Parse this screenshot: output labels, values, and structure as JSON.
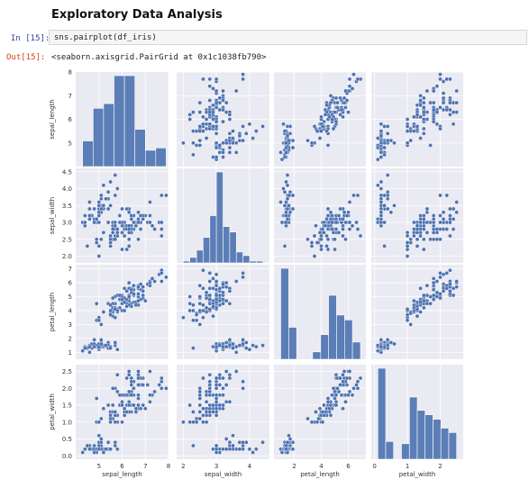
{
  "heading": "Exploratory Data Analysis",
  "cell": {
    "in_prompt": "In [15]:",
    "code": "sns.pairplot(df_iris)",
    "out_prompt": "Out[15]:",
    "output": "<seaborn.axisgrid.PairGrid at 0x1c1038fb790>"
  },
  "colors": {
    "panel_bg": "#eaeaf2",
    "marker": "#4c72b0",
    "grid": "#ffffff"
  },
  "chart_data": {
    "type": "scatter",
    "variables": [
      "sepal_length",
      "sepal_width",
      "petal_length",
      "petal_width"
    ],
    "axes": {
      "sepal_length": {
        "range": [
          4.0,
          8.0
        ],
        "ticks": [
          5,
          6,
          7,
          8
        ]
      },
      "sepal_width": {
        "range": [
          1.8,
          4.6
        ],
        "ticks": [
          2,
          3,
          4
        ]
      },
      "petal_length": {
        "range": [
          0.5,
          7.3
        ],
        "ticks": [
          2,
          4,
          6
        ]
      },
      "petal_width": {
        "range": [
          -0.1,
          2.7
        ],
        "ticks": [
          0,
          1,
          2
        ]
      }
    },
    "ytick_labels": {
      "sepal_length": [
        "5",
        "6",
        "7",
        "8"
      ],
      "sepal_width": [
        "2.0",
        "2.5",
        "3.0",
        "3.5",
        "4.0",
        "4.5"
      ],
      "petal_length": [
        "1",
        "2",
        "3",
        "4",
        "5",
        "6",
        "7"
      ],
      "petal_width": [
        "0.0",
        "0.5",
        "1.0",
        "1.5",
        "2.0",
        "2.5"
      ]
    },
    "ytick_values": {
      "sepal_length": [
        5,
        6,
        7,
        8
      ],
      "sepal_width": [
        2.0,
        2.5,
        3.0,
        3.5,
        4.0,
        4.5
      ],
      "petal_length": [
        1,
        2,
        3,
        4,
        5,
        6,
        7
      ],
      "petal_width": [
        0.0,
        0.5,
        1.0,
        1.5,
        2.0,
        2.5
      ]
    },
    "histograms": {
      "sepal_length": {
        "bins": [
          4.3,
          4.75,
          5.2,
          5.65,
          6.1,
          6.55,
          7.0,
          7.45,
          7.9
        ],
        "counts": [
          11,
          25,
          27,
          39,
          39,
          16,
          7,
          8
        ]
      },
      "sepal_width": {
        "bins": [
          2.0,
          2.2,
          2.4,
          2.6,
          2.8,
          3.0,
          3.2,
          3.4,
          3.6,
          3.8,
          4.0,
          4.2,
          4.4
        ],
        "counts": [
          1,
          3,
          7,
          14,
          26,
          50,
          20,
          17,
          6,
          4,
          1,
          1
        ]
      },
      "petal_length": {
        "bins": [
          1.0,
          1.59,
          2.18,
          2.77,
          3.36,
          3.95,
          4.54,
          5.13,
          5.72,
          6.31,
          6.9
        ],
        "counts": [
          37,
          13,
          0,
          0,
          3,
          10,
          26,
          18,
          16,
          7
        ]
      },
      "petal_width": {
        "bins": [
          0.1,
          0.34,
          0.58,
          0.82,
          1.06,
          1.3,
          1.54,
          1.78,
          2.02,
          2.26,
          2.5
        ],
        "counts": [
          41,
          8,
          0,
          7,
          28,
          22,
          20,
          18,
          14,
          12
        ]
      }
    },
    "points": [
      [
        5.1,
        3.5,
        1.4,
        0.2
      ],
      [
        4.9,
        3.0,
        1.4,
        0.2
      ],
      [
        4.7,
        3.2,
        1.3,
        0.2
      ],
      [
        4.6,
        3.1,
        1.5,
        0.2
      ],
      [
        5.0,
        3.6,
        1.4,
        0.2
      ],
      [
        5.4,
        3.9,
        1.7,
        0.4
      ],
      [
        4.6,
        3.4,
        1.4,
        0.3
      ],
      [
        5.0,
        3.4,
        1.5,
        0.2
      ],
      [
        4.4,
        2.9,
        1.4,
        0.2
      ],
      [
        4.9,
        3.1,
        1.5,
        0.1
      ],
      [
        5.4,
        3.7,
        1.5,
        0.2
      ],
      [
        4.8,
        3.4,
        1.6,
        0.2
      ],
      [
        4.8,
        3.0,
        1.4,
        0.1
      ],
      [
        4.3,
        3.0,
        1.1,
        0.1
      ],
      [
        5.8,
        4.0,
        1.2,
        0.2
      ],
      [
        5.7,
        4.4,
        1.5,
        0.4
      ],
      [
        5.4,
        3.9,
        1.3,
        0.4
      ],
      [
        5.1,
        3.5,
        1.4,
        0.3
      ],
      [
        5.7,
        3.8,
        1.7,
        0.3
      ],
      [
        5.1,
        3.8,
        1.5,
        0.3
      ],
      [
        5.4,
        3.4,
        1.7,
        0.2
      ],
      [
        5.1,
        3.7,
        1.5,
        0.4
      ],
      [
        4.6,
        3.6,
        1.0,
        0.2
      ],
      [
        5.1,
        3.3,
        1.7,
        0.5
      ],
      [
        4.8,
        3.4,
        1.9,
        0.2
      ],
      [
        5.0,
        3.0,
        1.6,
        0.2
      ],
      [
        5.0,
        3.4,
        1.6,
        0.4
      ],
      [
        5.2,
        3.5,
        1.5,
        0.2
      ],
      [
        5.2,
        3.4,
        1.4,
        0.2
      ],
      [
        4.7,
        3.2,
        1.6,
        0.2
      ],
      [
        4.8,
        3.1,
        1.6,
        0.2
      ],
      [
        5.4,
        3.4,
        1.5,
        0.4
      ],
      [
        5.2,
        4.1,
        1.5,
        0.1
      ],
      [
        5.5,
        4.2,
        1.4,
        0.2
      ],
      [
        4.9,
        3.1,
        1.5,
        0.2
      ],
      [
        5.0,
        3.2,
        1.2,
        0.2
      ],
      [
        5.5,
        3.5,
        1.3,
        0.2
      ],
      [
        4.4,
        3.0,
        1.3,
        0.2
      ],
      [
        5.1,
        3.4,
        1.5,
        0.2
      ],
      [
        5.0,
        3.5,
        1.3,
        0.3
      ],
      [
        4.5,
        2.3,
        1.3,
        0.3
      ],
      [
        4.4,
        3.2,
        1.3,
        0.2
      ],
      [
        5.0,
        3.5,
        1.6,
        0.6
      ],
      [
        5.1,
        3.8,
        1.9,
        0.4
      ],
      [
        4.8,
        3.0,
        1.4,
        0.3
      ],
      [
        5.1,
        3.8,
        1.6,
        0.2
      ],
      [
        4.6,
        3.2,
        1.4,
        0.2
      ],
      [
        5.3,
        3.7,
        1.5,
        0.2
      ],
      [
        5.0,
        3.3,
        1.4,
        0.2
      ],
      [
        7.0,
        3.2,
        4.7,
        1.4
      ],
      [
        6.4,
        3.2,
        4.5,
        1.5
      ],
      [
        6.9,
        3.1,
        4.9,
        1.5
      ],
      [
        5.5,
        2.3,
        4.0,
        1.3
      ],
      [
        6.5,
        2.8,
        4.6,
        1.5
      ],
      [
        5.7,
        2.8,
        4.5,
        1.3
      ],
      [
        6.3,
        3.3,
        4.7,
        1.6
      ],
      [
        4.9,
        2.4,
        3.3,
        1.0
      ],
      [
        6.6,
        2.9,
        4.6,
        1.3
      ],
      [
        5.2,
        2.7,
        3.9,
        1.4
      ],
      [
        5.0,
        2.0,
        3.5,
        1.0
      ],
      [
        5.9,
        3.0,
        4.2,
        1.5
      ],
      [
        6.0,
        2.2,
        4.0,
        1.0
      ],
      [
        6.1,
        2.9,
        4.7,
        1.4
      ],
      [
        5.6,
        2.9,
        3.6,
        1.3
      ],
      [
        6.7,
        3.1,
        4.4,
        1.4
      ],
      [
        5.6,
        3.0,
        4.5,
        1.5
      ],
      [
        5.8,
        2.7,
        4.1,
        1.0
      ],
      [
        6.2,
        2.2,
        4.5,
        1.5
      ],
      [
        5.6,
        2.5,
        3.9,
        1.1
      ],
      [
        5.9,
        3.2,
        4.8,
        1.8
      ],
      [
        6.1,
        2.8,
        4.0,
        1.3
      ],
      [
        6.3,
        2.5,
        4.9,
        1.5
      ],
      [
        6.1,
        2.8,
        4.7,
        1.2
      ],
      [
        6.4,
        2.9,
        4.3,
        1.3
      ],
      [
        6.6,
        3.0,
        4.4,
        1.4
      ],
      [
        6.8,
        2.8,
        4.8,
        1.4
      ],
      [
        6.7,
        3.0,
        5.0,
        1.7
      ],
      [
        6.0,
        2.9,
        4.5,
        1.5
      ],
      [
        5.7,
        2.6,
        3.5,
        1.0
      ],
      [
        5.5,
        2.4,
        3.8,
        1.1
      ],
      [
        5.5,
        2.4,
        3.7,
        1.0
      ],
      [
        5.8,
        2.7,
        3.9,
        1.2
      ],
      [
        6.0,
        2.7,
        5.1,
        1.6
      ],
      [
        5.4,
        3.0,
        4.5,
        1.5
      ],
      [
        6.0,
        3.4,
        4.5,
        1.6
      ],
      [
        6.7,
        3.1,
        4.7,
        1.5
      ],
      [
        6.3,
        2.3,
        4.4,
        1.3
      ],
      [
        5.6,
        3.0,
        4.1,
        1.3
      ],
      [
        5.5,
        2.5,
        4.0,
        1.3
      ],
      [
        5.5,
        2.6,
        4.4,
        1.2
      ],
      [
        6.1,
        3.0,
        4.6,
        1.4
      ],
      [
        5.8,
        2.6,
        4.0,
        1.2
      ],
      [
        5.0,
        2.3,
        3.3,
        1.0
      ],
      [
        5.6,
        2.7,
        4.2,
        1.3
      ],
      [
        5.7,
        3.0,
        4.2,
        1.2
      ],
      [
        5.7,
        2.9,
        4.2,
        1.3
      ],
      [
        6.2,
        2.9,
        4.3,
        1.3
      ],
      [
        5.1,
        2.5,
        3.0,
        1.1
      ],
      [
        5.7,
        2.8,
        4.1,
        1.3
      ],
      [
        6.3,
        3.3,
        6.0,
        2.5
      ],
      [
        5.8,
        2.7,
        5.1,
        1.9
      ],
      [
        7.1,
        3.0,
        5.9,
        2.1
      ],
      [
        6.3,
        2.9,
        5.6,
        1.8
      ],
      [
        6.5,
        3.0,
        5.8,
        2.2
      ],
      [
        7.6,
        3.0,
        6.6,
        2.1
      ],
      [
        4.9,
        2.5,
        4.5,
        1.7
      ],
      [
        7.3,
        2.9,
        6.3,
        1.8
      ],
      [
        6.7,
        2.5,
        5.8,
        1.8
      ],
      [
        7.2,
        3.6,
        6.1,
        2.5
      ],
      [
        6.5,
        3.2,
        5.1,
        2.0
      ],
      [
        6.4,
        2.7,
        5.3,
        1.9
      ],
      [
        6.8,
        3.0,
        5.5,
        2.1
      ],
      [
        5.7,
        2.5,
        5.0,
        2.0
      ],
      [
        5.8,
        2.8,
        5.1,
        2.4
      ],
      [
        6.4,
        3.2,
        5.3,
        2.3
      ],
      [
        6.5,
        3.0,
        5.5,
        1.8
      ],
      [
        7.7,
        3.8,
        6.7,
        2.2
      ],
      [
        7.7,
        2.6,
        6.9,
        2.3
      ],
      [
        6.0,
        2.2,
        5.0,
        1.5
      ],
      [
        6.9,
        3.2,
        5.7,
        2.3
      ],
      [
        5.6,
        2.8,
        4.9,
        2.0
      ],
      [
        7.7,
        2.8,
        6.7,
        2.0
      ],
      [
        6.3,
        2.7,
        4.9,
        1.8
      ],
      [
        6.7,
        3.3,
        5.7,
        2.1
      ],
      [
        7.2,
        3.2,
        6.0,
        1.8
      ],
      [
        6.2,
        2.8,
        4.8,
        1.8
      ],
      [
        6.1,
        3.0,
        4.9,
        1.8
      ],
      [
        6.4,
        2.8,
        5.6,
        2.1
      ],
      [
        7.2,
        3.0,
        5.8,
        1.6
      ],
      [
        7.4,
        2.8,
        6.1,
        1.9
      ],
      [
        7.9,
        3.8,
        6.4,
        2.0
      ],
      [
        6.4,
        2.8,
        5.6,
        2.2
      ],
      [
        6.3,
        2.8,
        5.1,
        1.5
      ],
      [
        6.1,
        2.6,
        5.6,
        1.4
      ],
      [
        7.7,
        3.0,
        6.1,
        2.3
      ],
      [
        6.3,
        3.4,
        5.6,
        2.4
      ],
      [
        6.4,
        3.1,
        5.5,
        1.8
      ],
      [
        6.0,
        3.0,
        4.8,
        1.8
      ],
      [
        6.9,
        3.1,
        5.4,
        2.1
      ],
      [
        6.7,
        3.1,
        5.6,
        2.4
      ],
      [
        6.9,
        3.1,
        5.1,
        2.3
      ],
      [
        6.8,
        3.2,
        5.9,
        2.3
      ],
      [
        6.7,
        3.3,
        5.7,
        2.5
      ],
      [
        6.7,
        3.0,
        5.2,
        2.3
      ],
      [
        6.3,
        2.5,
        5.0,
        1.9
      ],
      [
        6.5,
        3.0,
        5.2,
        2.0
      ],
      [
        6.2,
        3.4,
        5.4,
        2.3
      ],
      [
        5.9,
        3.0,
        5.1,
        1.8
      ]
    ]
  }
}
